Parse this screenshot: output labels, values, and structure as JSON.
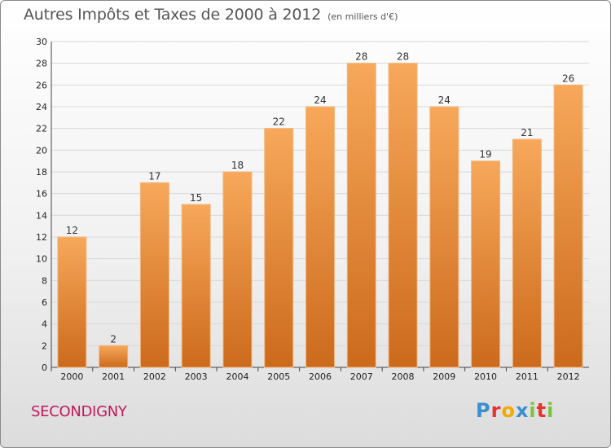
{
  "title": "Autres Impôts et Taxes de 2000 à 2012",
  "subtitle": "(en milliers d'€)",
  "place": "SECONDIGNY",
  "brand": {
    "text": "Proxiti",
    "letter_colors": [
      "#3a8fd0",
      "#e8322e",
      "#f2a900",
      "#3a8fd0",
      "#7cc242",
      "#e8322e",
      "#7cc242"
    ]
  },
  "colors": {
    "bar_top": "#f7a85a",
    "bar_bottom": "#cc6a1c",
    "bar_stroke": "#f3b57e"
  },
  "chart_data": {
    "type": "bar",
    "categories": [
      "2000",
      "2001",
      "2002",
      "2003",
      "2004",
      "2005",
      "2006",
      "2007",
      "2008",
      "2009",
      "2010",
      "2011",
      "2012"
    ],
    "values": [
      12,
      2,
      17,
      15,
      18,
      22,
      24,
      28,
      28,
      24,
      19,
      21,
      26
    ],
    "title": "Autres Impôts et Taxes de 2000 à 2012",
    "subtitle": "(en milliers d'€)",
    "xlabel": "",
    "ylabel": "",
    "ylim": [
      0,
      30
    ],
    "yticks": [
      0,
      2,
      4,
      6,
      8,
      10,
      12,
      14,
      16,
      18,
      20,
      22,
      24,
      26,
      28,
      30
    ],
    "grid": true,
    "legend": "none"
  }
}
